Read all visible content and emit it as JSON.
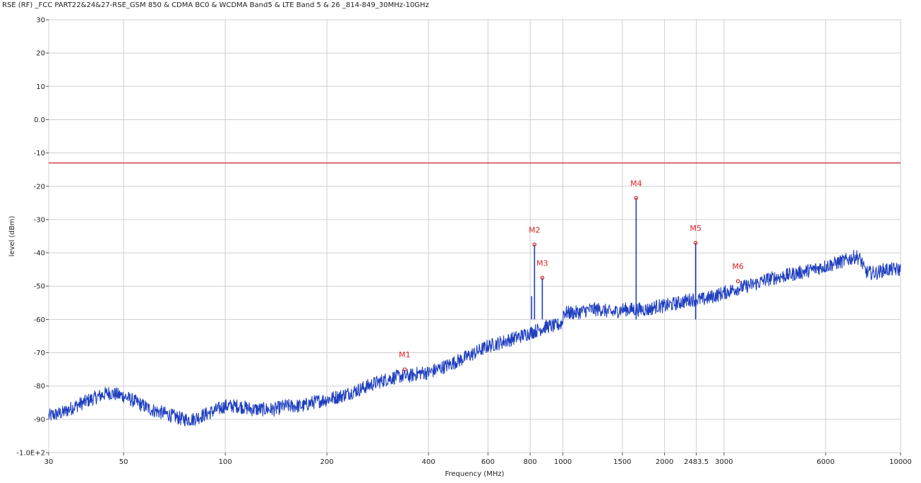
{
  "chart_data": {
    "type": "line",
    "title": "RSE (RF) _FCC PART22&24&27-RSE_GSM 850 & CDMA BC0 & WCDMA Band5 & LTE Band 5 & 26 _814-849_30MHz-10GHz",
    "xlabel": "Frequency (MHz)",
    "ylabel": "level (dBm)",
    "x_scale": "log",
    "xlim": [
      30,
      10000
    ],
    "ylim": [
      -100,
      30
    ],
    "grid": true,
    "x_ticks": [
      30,
      50,
      100,
      200,
      400,
      600,
      800,
      1000,
      1500,
      2000,
      2483.5,
      3000,
      6000,
      10000
    ],
    "x_tick_labels": [
      "30",
      "50",
      "100",
      "200",
      "400",
      "600",
      "800",
      "1000",
      "1500",
      "2000",
      "2483.5",
      "3000",
      "6000",
      "10000"
    ],
    "y_ticks": [
      30,
      20,
      10,
      0,
      -10,
      -20,
      -30,
      -40,
      -50,
      -60,
      -70,
      -80,
      -90,
      -100
    ],
    "y_tick_labels": [
      "30",
      "20",
      "10",
      "0.0",
      "-10",
      "-20",
      "-30",
      "-40",
      "-50",
      "-60",
      "-70",
      "-80",
      "-90",
      "-1.0E+2"
    ],
    "limit_line": {
      "y": -13,
      "color": "#cc2222"
    },
    "series": [
      {
        "color": "#1f3fbf",
        "x": [
          30,
          33,
          36,
          40,
          45,
          50,
          55,
          60,
          65,
          70,
          75,
          80,
          85,
          90,
          100,
          110,
          120,
          130,
          140,
          150,
          160,
          170,
          180,
          200,
          220,
          250,
          280,
          300,
          330,
          350,
          380,
          400,
          450,
          500,
          550,
          600,
          650,
          700,
          750,
          800,
          850,
          900,
          950,
          999,
          1001,
          1050,
          1100,
          1200,
          1300,
          1400,
          1500,
          1600,
          1700,
          1800,
          1900,
          2000,
          2200,
          2400,
          2600,
          2800,
          3000,
          3200,
          3500,
          3800,
          4000,
          4500,
          5000,
          5500,
          6000,
          6500,
          7000,
          7400,
          7600,
          7700,
          7800,
          8000,
          8500,
          9000,
          9500,
          10000
        ],
        "values": [
          -89,
          -88,
          -86,
          -84,
          -82,
          -83,
          -85,
          -87,
          -88,
          -89,
          -90,
          -90,
          -89,
          -88,
          -86,
          -86,
          -87,
          -87,
          -87,
          -86,
          -86,
          -86,
          -85,
          -84,
          -83,
          -81,
          -79,
          -78,
          -77,
          -77,
          -76,
          -76,
          -74,
          -72,
          -70,
          -68,
          -67,
          -66,
          -65,
          -64,
          -63,
          -62,
          -62,
          -61,
          -58,
          -58,
          -58,
          -57,
          -57,
          -58,
          -57,
          -57,
          -57,
          -57,
          -56,
          -56,
          -55,
          -54,
          -54,
          -53,
          -52,
          -51,
          -50,
          -49,
          -48,
          -47,
          -46,
          -45,
          -44,
          -43,
          -42,
          -41,
          -42,
          -43,
          -45,
          -46,
          -46,
          -45,
          -45,
          -45
        ]
      }
    ],
    "spikes": [
      {
        "x": 808,
        "y": -53
      },
      {
        "x": 824,
        "y": -37.5
      },
      {
        "x": 869,
        "y": -47.5
      },
      {
        "x": 1648,
        "y": -23.5
      },
      {
        "x": 2472,
        "y": -37
      }
    ],
    "markers": [
      {
        "label": "M1",
        "x": 340,
        "y": -75
      },
      {
        "label": "M2",
        "x": 824,
        "y": -37.5
      },
      {
        "label": "M3",
        "x": 869,
        "y": -47.5
      },
      {
        "label": "M4",
        "x": 1648,
        "y": -23.5
      },
      {
        "label": "M5",
        "x": 2472,
        "y": -37
      },
      {
        "label": "M6",
        "x": 3300,
        "y": -48.5
      }
    ],
    "marker_color": "#dd2222"
  }
}
